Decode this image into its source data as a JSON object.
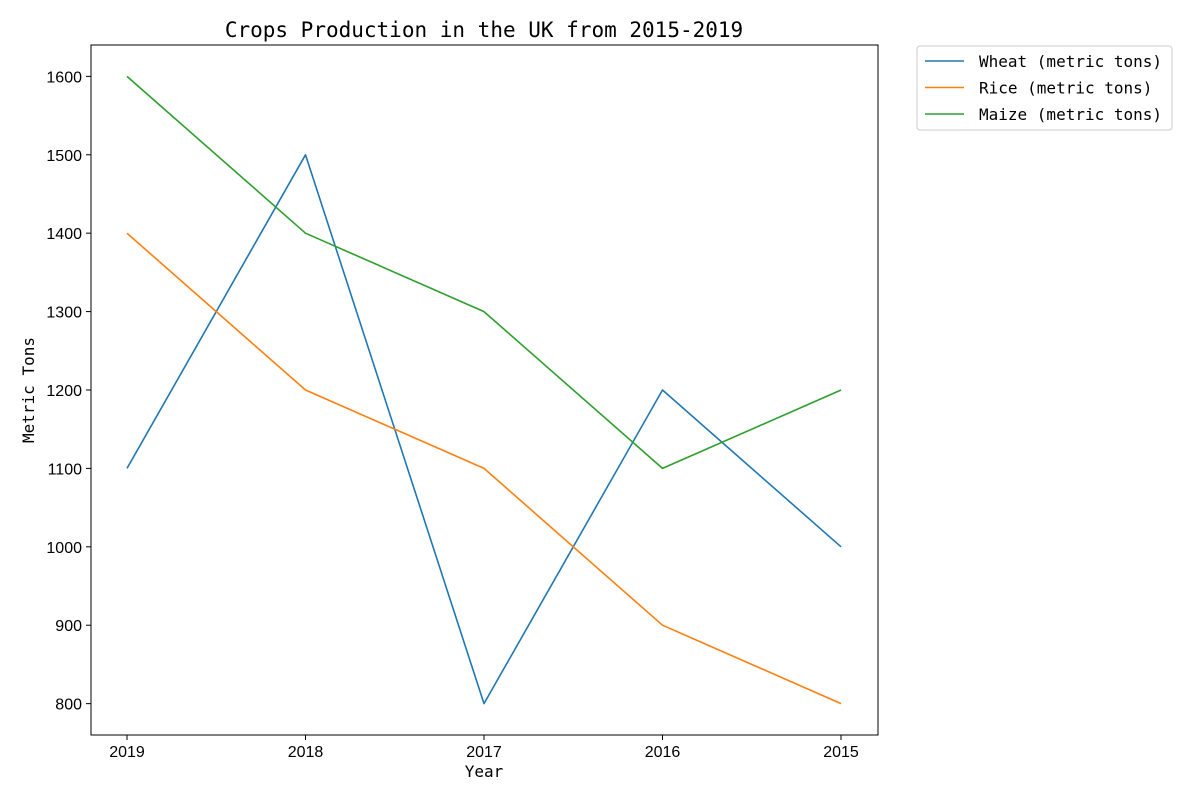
{
  "chart_data": {
    "type": "line",
    "title": "Crops Production in the UK from 2015-2019",
    "xlabel": "Year",
    "ylabel": "Metric Tons",
    "categories": [
      "2019",
      "2018",
      "2017",
      "2016",
      "2015"
    ],
    "series": [
      {
        "name": "Wheat (metric tons)",
        "values": [
          1100,
          1500,
          800,
          1200,
          1000
        ],
        "color": "#1f77b4"
      },
      {
        "name": "Rice (metric tons)",
        "values": [
          1400,
          1200,
          1100,
          900,
          800
        ],
        "color": "#ff7f0e"
      },
      {
        "name": "Maize (metric tons)",
        "values": [
          1600,
          1400,
          1300,
          1100,
          1200
        ],
        "color": "#2ca02c"
      }
    ],
    "ylim": [
      760,
      1640
    ],
    "yticks": [
      800,
      900,
      1000,
      1100,
      1200,
      1300,
      1400,
      1500,
      1600
    ],
    "grid": false,
    "legend_placement": "outside-top-right"
  }
}
